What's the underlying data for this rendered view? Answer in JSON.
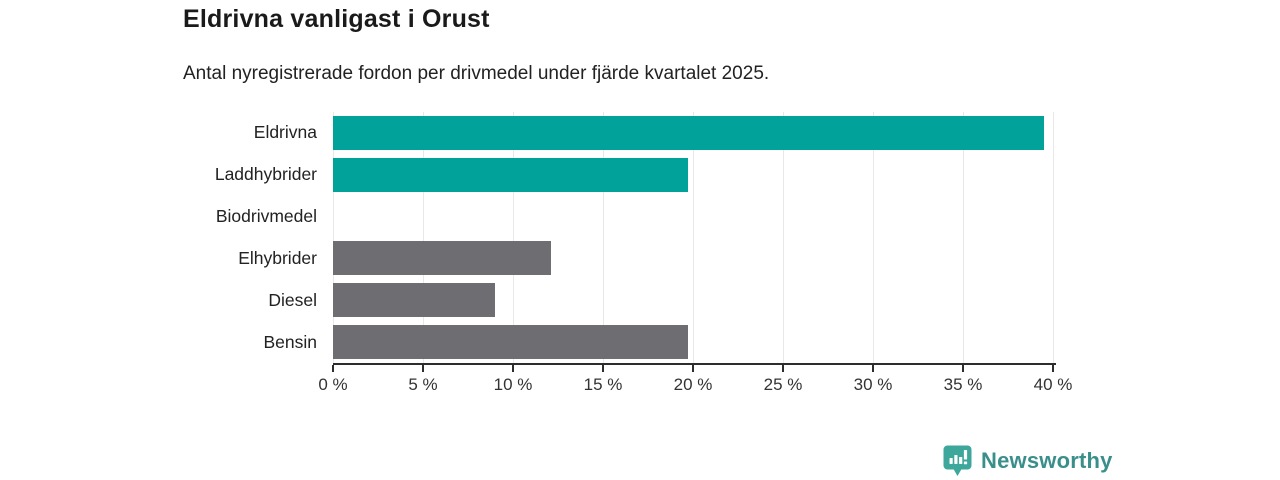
{
  "title": "Eldrivna vanligast i Orust",
  "subtitle": "Antal nyregistrerade fordon per drivmedel under fjärde kvartalet 2025.",
  "chart_data": {
    "type": "bar",
    "orientation": "horizontal",
    "title": "Eldrivna vanligast i Orust",
    "subtitle": "Antal nyregistrerade fordon per drivmedel under fjärde kvartalet 2025.",
    "categories": [
      "Eldrivna",
      "Laddhybrider",
      "Biodrivmedel",
      "Elhybrider",
      "Diesel",
      "Bensin"
    ],
    "values": [
      39.5,
      19.7,
      0,
      12.1,
      9.0,
      19.7
    ],
    "unit": "%",
    "xlim": [
      0,
      40
    ],
    "x_tick_labels": [
      "0 %",
      "5 %",
      "10 %",
      "15 %",
      "20 %",
      "25 %",
      "30 %",
      "35 %",
      "40 %"
    ],
    "bar_colors": [
      "#00a299",
      "#00a299",
      "#6e6d72",
      "#6e6d72",
      "#6e6d72",
      "#6e6d72"
    ],
    "highlight_color": "#00a299",
    "default_color": "#6e6d72",
    "gridline_color": "#e8e8e8",
    "axis_color": "#2d2d2d",
    "grid": true,
    "legend": false,
    "xlabel": "",
    "ylabel": ""
  },
  "branding": {
    "logo_text": "Newsworthy",
    "logo_color": "#3a8f8b",
    "icon_color": "#3ea79b",
    "icon": "newsworthy-chart-bubble-icon"
  }
}
